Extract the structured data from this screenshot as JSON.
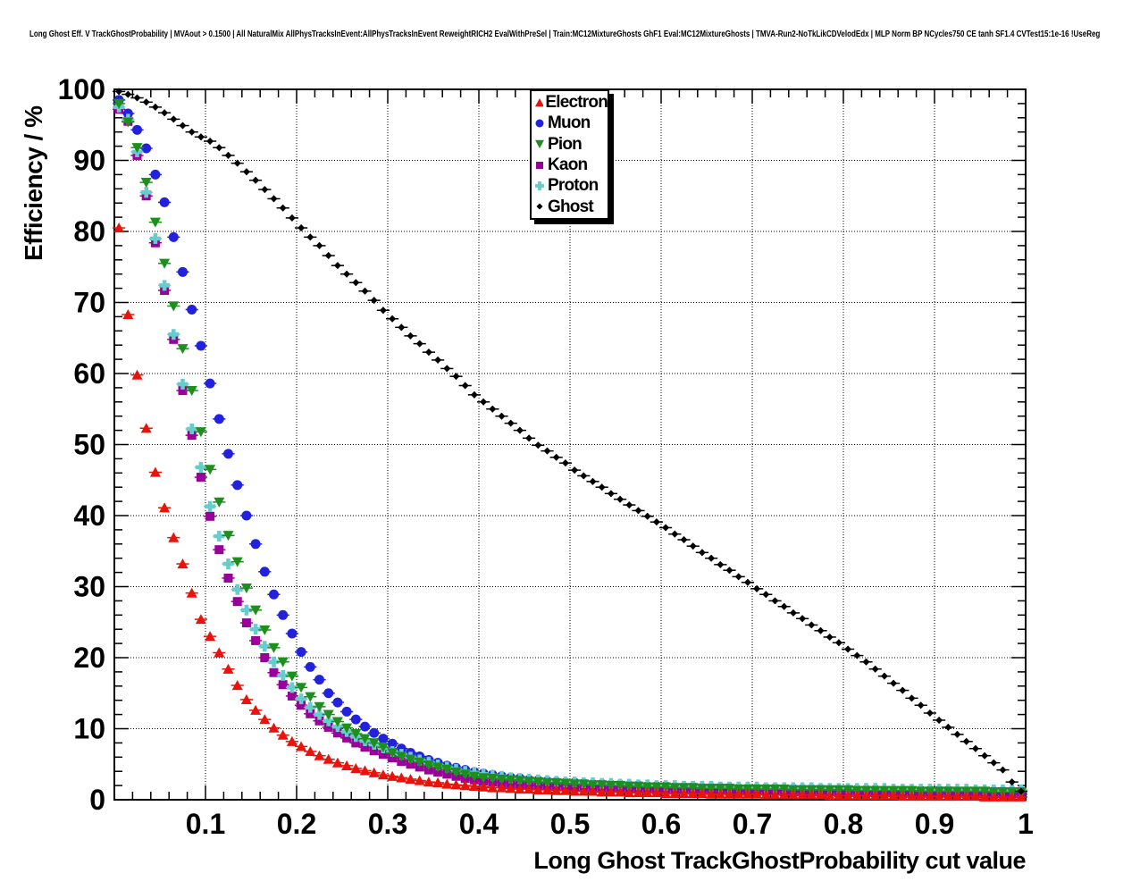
{
  "title": "Long Ghost Eff. V TrackGhostProbability | MVAout > 0.1500 | All NaturalMix AllPhysTracksInEvent:AllPhysTracksInEvent ReweightRICH2 EvalWithPreSel | Train:MC12MixtureGhosts GhF1 Eval:MC12MixtureGhosts | TMVA-Run2-NoTkLikCDVelodEdx | MLP Norm BP NCycles750 CE tanh SF1.4 CVTest15:1e-16 !UseReg",
  "axes": {
    "x_title": "Long Ghost TrackGhostProbability cut value",
    "y_title": "Efficiency / %"
  },
  "chart_data": {
    "type": "scatter",
    "title": "Long Ghost Eff. V TrackGhostProbability | MVAout > 0.1500 | All NaturalMix AllPhysTracksInEvent:AllPhysTracksInEvent ReweightRICH2 EvalWithPreSel | Train:MC12MixtureGhosts GhF1 Eval:MC12MixtureGhosts | TMVA-Run2-NoTkLikCDVelodEdx | MLP Norm BP NCycles750 CE tanh SF1.4 CVTest15:1e-16 !UseReg",
    "xlabel": "Long Ghost TrackGhostProbability cut value",
    "ylabel": "Efficiency / %",
    "xlim": [
      0,
      1
    ],
    "ylim": [
      0,
      100
    ],
    "grid": "dotted",
    "legend_position": "top-center-inside",
    "x_major_ticks": [
      0.1,
      0.2,
      0.3,
      0.4,
      0.5,
      0.6,
      0.7,
      0.8,
      0.9,
      1.0
    ],
    "x_tick_labels": [
      "0.1",
      "0.2",
      "0.3",
      "0.4",
      "0.5",
      "0.6",
      "0.7",
      "0.8",
      "0.9",
      "1"
    ],
    "y_major_ticks": [
      0,
      10,
      20,
      30,
      40,
      50,
      60,
      70,
      80,
      90,
      100
    ],
    "y_tick_labels": [
      "0",
      "10",
      "20",
      "30",
      "40",
      "50",
      "60",
      "70",
      "80",
      "90",
      "100"
    ],
    "x_minor_step": 0.02,
    "y_minor_step": 2,
    "x_error_halfwidth": 0.005,
    "x": [
      0.005,
      0.015,
      0.025,
      0.035,
      0.045,
      0.055,
      0.065,
      0.075,
      0.085,
      0.095,
      0.105,
      0.115,
      0.125,
      0.135,
      0.145,
      0.155,
      0.165,
      0.175,
      0.185,
      0.195,
      0.205,
      0.215,
      0.225,
      0.235,
      0.245,
      0.255,
      0.265,
      0.275,
      0.285,
      0.295,
      0.305,
      0.315,
      0.325,
      0.335,
      0.345,
      0.355,
      0.365,
      0.375,
      0.385,
      0.395,
      0.405,
      0.415,
      0.425,
      0.435,
      0.445,
      0.455,
      0.465,
      0.475,
      0.485,
      0.495,
      0.505,
      0.515,
      0.525,
      0.535,
      0.545,
      0.555,
      0.565,
      0.575,
      0.585,
      0.595,
      0.605,
      0.615,
      0.625,
      0.635,
      0.645,
      0.655,
      0.665,
      0.675,
      0.685,
      0.695,
      0.705,
      0.715,
      0.725,
      0.735,
      0.745,
      0.755,
      0.765,
      0.775,
      0.785,
      0.795,
      0.805,
      0.815,
      0.825,
      0.835,
      0.845,
      0.855,
      0.865,
      0.875,
      0.885,
      0.895,
      0.905,
      0.915,
      0.925,
      0.935,
      0.945,
      0.955,
      0.965,
      0.975,
      0.985,
      0.995
    ],
    "series": [
      {
        "name": "Electron",
        "color": "#e8130a",
        "marker": "triangle-up",
        "values": [
          80.5,
          68.3,
          59.8,
          52.3,
          46.1,
          41.1,
          36.9,
          33.2,
          29.1,
          25.4,
          23.0,
          20.7,
          18.4,
          16.1,
          14.1,
          12.6,
          11.3,
          10.1,
          9.1,
          8.2,
          7.5,
          6.8,
          6.2,
          5.7,
          5.2,
          4.8,
          4.4,
          4.1,
          3.8,
          3.5,
          3.3,
          3.1,
          2.9,
          2.7,
          2.5,
          2.4,
          2.2,
          2.1,
          2.0,
          1.9,
          1.8,
          1.7,
          1.7,
          1.6,
          1.5,
          1.5,
          1.4,
          1.4,
          1.3,
          1.3,
          1.2,
          1.2,
          1.2,
          1.1,
          1.1,
          1.1,
          1.0,
          1.0,
          1.0,
          1.0,
          0.9,
          0.9,
          0.9,
          0.9,
          0.9,
          0.8,
          0.8,
          0.8,
          0.8,
          0.8,
          0.8,
          0.7,
          0.7,
          0.7,
          0.7,
          0.7,
          0.7,
          0.7,
          0.6,
          0.6,
          0.6,
          0.6,
          0.6,
          0.6,
          0.6,
          0.6,
          0.5,
          0.5,
          0.5,
          0.5,
          0.5,
          0.5,
          0.5,
          0.5,
          0.5,
          0.4,
          0.4,
          0.4,
          0.4,
          0.4
        ]
      },
      {
        "name": "Muon",
        "color": "#2222dd",
        "marker": "circle",
        "values": [
          98.5,
          96.6,
          94.3,
          91.7,
          88.0,
          84.1,
          79.2,
          74.3,
          69.0,
          63.9,
          58.6,
          53.6,
          48.7,
          44.3,
          40.0,
          36.0,
          32.1,
          28.9,
          26.0,
          23.4,
          20.8,
          18.7,
          16.9,
          15.0,
          13.7,
          12.4,
          11.3,
          10.3,
          9.4,
          8.6,
          7.9,
          7.2,
          6.6,
          6.1,
          5.6,
          5.2,
          4.8,
          4.5,
          4.2,
          3.9,
          3.7,
          3.5,
          3.3,
          3.1,
          3.0,
          2.8,
          2.7,
          2.6,
          2.5,
          2.4,
          2.4,
          2.3,
          2.2,
          2.2,
          2.1,
          2.1,
          2.0,
          2.0,
          1.9,
          1.9,
          1.9,
          1.8,
          1.8,
          1.8,
          1.7,
          1.7,
          1.7,
          1.7,
          1.6,
          1.6,
          1.6,
          1.6,
          1.6,
          1.5,
          1.5,
          1.5,
          1.5,
          1.5,
          1.4,
          1.4,
          1.4,
          1.4,
          1.4,
          1.4,
          1.3,
          1.3,
          1.3,
          1.3,
          1.3,
          1.3,
          1.3,
          1.3,
          1.2,
          1.2,
          1.2,
          1.2,
          1.2,
          1.2,
          1.2,
          1.2
        ]
      },
      {
        "name": "Pion",
        "color": "#1e8e1e",
        "marker": "triangle-down",
        "values": [
          98.0,
          95.4,
          91.8,
          86.9,
          81.3,
          75.5,
          69.5,
          63.5,
          57.6,
          51.8,
          46.5,
          41.9,
          37.2,
          33.5,
          29.8,
          26.7,
          23.9,
          21.4,
          19.4,
          17.4,
          15.8,
          14.5,
          13.1,
          12.0,
          11.0,
          10.1,
          9.3,
          8.6,
          8.0,
          7.4,
          6.6,
          6.1,
          5.7,
          5.3,
          4.9,
          4.6,
          4.3,
          3.9,
          3.6,
          3.3,
          3.1,
          3.0,
          2.9,
          2.8,
          2.7,
          2.6,
          2.5,
          2.4,
          2.4,
          2.3,
          2.2,
          2.2,
          2.1,
          2.1,
          2.0,
          2.0,
          1.9,
          1.9,
          1.8,
          1.8,
          1.8,
          1.7,
          1.7,
          1.7,
          1.6,
          1.6,
          1.6,
          1.6,
          1.5,
          1.5,
          1.5,
          1.5,
          1.5,
          1.5,
          1.4,
          1.4,
          1.4,
          1.4,
          1.4,
          1.4,
          1.4,
          1.3,
          1.3,
          1.3,
          1.3,
          1.3,
          1.3,
          1.3,
          1.2,
          1.2,
          1.2,
          1.2,
          1.2,
          1.2,
          1.2,
          1.2,
          1.1,
          1.1,
          1.1,
          1.1
        ]
      },
      {
        "name": "Kaon",
        "color": "#990099",
        "marker": "square",
        "values": [
          97.2,
          95.5,
          90.7,
          85.0,
          78.4,
          71.7,
          64.8,
          57.6,
          51.3,
          45.4,
          39.9,
          35.2,
          31.2,
          27.9,
          24.9,
          22.4,
          20.0,
          17.9,
          16.2,
          14.6,
          13.3,
          12.1,
          11.1,
          10.2,
          9.4,
          8.7,
          8.0,
          7.4,
          6.9,
          6.4,
          5.9,
          5.4,
          5.0,
          4.6,
          4.2,
          3.9,
          3.6,
          3.3,
          3.0,
          2.8,
          2.6,
          2.5,
          2.4,
          2.3,
          2.2,
          2.1,
          2.0,
          2.0,
          1.9,
          1.9,
          1.8,
          1.8,
          1.7,
          1.7,
          1.6,
          1.6,
          1.5,
          1.5,
          1.5,
          1.4,
          1.4,
          1.4,
          1.4,
          1.3,
          1.3,
          1.3,
          1.3,
          1.2,
          1.2,
          1.2,
          1.2,
          1.2,
          1.2,
          1.1,
          1.1,
          1.1,
          1.1,
          1.1,
          1.1,
          1.0,
          1.0,
          1.0,
          1.0,
          1.0,
          1.0,
          1.0,
          0.9,
          0.9,
          0.9,
          0.9,
          0.9,
          0.9,
          0.9,
          0.9,
          0.8,
          0.8,
          0.8,
          0.8,
          0.8,
          0.8
        ]
      },
      {
        "name": "Proton",
        "color": "#66cccc",
        "marker": "plus",
        "values": [
          97.5,
          95.8,
          91.2,
          85.5,
          79.0,
          72.4,
          65.5,
          58.5,
          52.2,
          46.8,
          41.3,
          37.1,
          33.2,
          29.6,
          26.7,
          24.0,
          21.6,
          19.4,
          17.5,
          15.8,
          14.2,
          13.0,
          12.0,
          11.1,
          10.3,
          9.6,
          8.9,
          8.3,
          7.8,
          7.3,
          6.8,
          6.4,
          6.0,
          5.6,
          5.3,
          4.9,
          4.6,
          4.3,
          4.0,
          3.8,
          3.6,
          3.4,
          3.3,
          3.1,
          3.0,
          2.9,
          2.8,
          2.7,
          2.6,
          2.5,
          2.5,
          2.4,
          2.4,
          2.3,
          2.3,
          2.2,
          2.2,
          2.1,
          2.1,
          2.0,
          2.0,
          2.0,
          1.9,
          1.9,
          1.9,
          1.9,
          1.8,
          1.8,
          1.8,
          1.8,
          1.8,
          1.7,
          1.7,
          1.7,
          1.7,
          1.7,
          1.7,
          1.6,
          1.6,
          1.6,
          1.6,
          1.6,
          1.6,
          1.6,
          1.6,
          1.5,
          1.5,
          1.5,
          1.5,
          1.5,
          1.5,
          1.5,
          1.5,
          1.5,
          1.4,
          1.4,
          1.4,
          1.4,
          1.4,
          1.4
        ]
      },
      {
        "name": "Ghost",
        "color": "#000000",
        "marker": "diamond",
        "values": [
          99.7,
          99.3,
          98.8,
          98.2,
          97.5,
          96.7,
          95.8,
          94.9,
          94.0,
          93.3,
          92.7,
          91.8,
          90.7,
          89.6,
          88.4,
          87.2,
          85.9,
          84.6,
          83.3,
          81.9,
          80.5,
          79.2,
          78.0,
          76.6,
          75.2,
          74.0,
          72.8,
          71.6,
          70.3,
          68.9,
          67.7,
          66.5,
          65.3,
          64.2,
          63.0,
          61.9,
          60.7,
          59.6,
          58.3,
          57.0,
          56.0,
          55.0,
          54.0,
          53.0,
          52.0,
          50.9,
          49.9,
          49.1,
          48.2,
          47.4,
          46.4,
          45.6,
          44.8,
          44.0,
          43.1,
          42.3,
          41.5,
          40.7,
          39.9,
          39.1,
          38.3,
          37.4,
          36.6,
          35.7,
          34.8,
          34.0,
          33.1,
          32.3,
          31.4,
          30.6,
          29.7,
          28.9,
          28.0,
          27.2,
          26.3,
          25.5,
          24.6,
          23.8,
          22.9,
          22.1,
          21.2,
          20.3,
          19.4,
          18.4,
          17.4,
          16.4,
          15.4,
          14.3,
          13.3,
          12.2,
          11.2,
          10.2,
          9.2,
          8.2,
          7.2,
          6.2,
          5.2,
          4.2,
          2.5,
          1.2
        ]
      }
    ]
  }
}
